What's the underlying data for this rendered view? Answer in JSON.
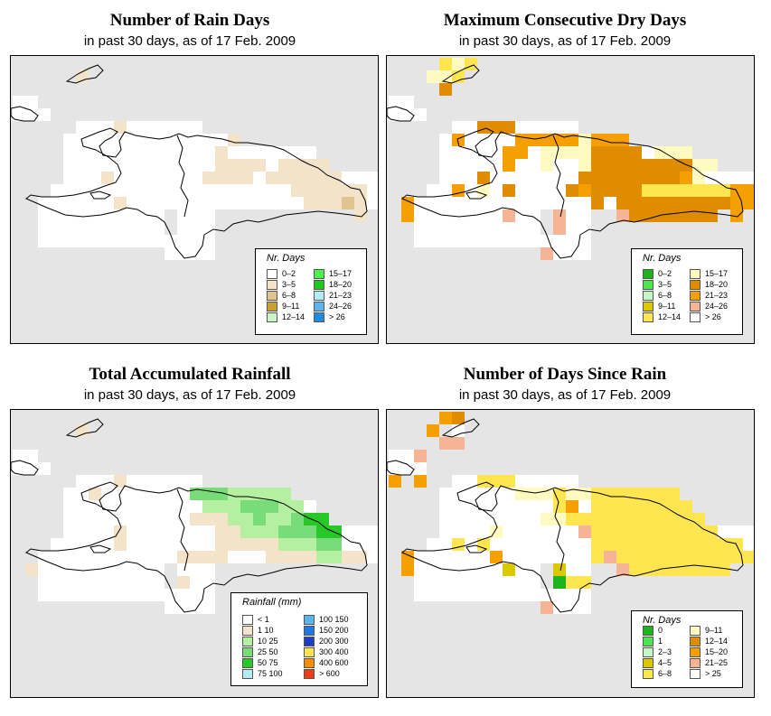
{
  "panels": [
    {
      "title": "Number of Rain Days",
      "subtitle": "in past 30 days, as of  17 Feb. 2009",
      "legend_title": "Nr. Days",
      "legend": [
        {
          "label": "0–2",
          "color": "#ffffff"
        },
        {
          "label": "3–5",
          "color": "#f2e3c9"
        },
        {
          "label": "6–8",
          "color": "#e0c48f"
        },
        {
          "label": "9–11",
          "color": "#c9a033"
        },
        {
          "label": "12–14",
          "color": "#c8f5c8"
        },
        {
          "label": "15–17",
          "color": "#4ef04e"
        },
        {
          "label": "18–20",
          "color": "#1ec81e"
        },
        {
          "label": "21–23",
          "color": "#b4ecf5"
        },
        {
          "label": "24–26",
          "color": "#5ab4f0"
        },
        {
          "label": "> 26",
          "color": "#1e8ce6"
        }
      ]
    },
    {
      "title": "Maximum Consecutive Dry Days",
      "subtitle": "in past 30 days, as of  17 Feb. 2009",
      "legend_title": "Nr. Days",
      "legend": [
        {
          "label": "0–2",
          "color": "#1eb41e"
        },
        {
          "label": "3–5",
          "color": "#4ee64e"
        },
        {
          "label": "6–8",
          "color": "#c8f5c8"
        },
        {
          "label": "9–11",
          "color": "#dcc800"
        },
        {
          "label": "12–14",
          "color": "#ffe650"
        },
        {
          "label": "15–17",
          "color": "#fffac0"
        },
        {
          "label": "18–20",
          "color": "#e08c00"
        },
        {
          "label": "21–23",
          "color": "#f5a000"
        },
        {
          "label": "24–26",
          "color": "#f5b496"
        },
        {
          "label": "> 26",
          "color": "#ffffff"
        }
      ]
    },
    {
      "title": "Total Accumulated Rainfall",
      "subtitle": "in past 30 days, as of  17 Feb. 2009",
      "legend_title": "Rainfall (mm)",
      "legend": [
        {
          "label": "< 1",
          "color": "#ffffff"
        },
        {
          "label": "1    10",
          "color": "#f2e3c9"
        },
        {
          "label": "10    25",
          "color": "#b4f0a0"
        },
        {
          "label": "25    50",
          "color": "#78dc78"
        },
        {
          "label": "50    75",
          "color": "#28c828"
        },
        {
          "label": "75  100",
          "color": "#b4ecf5"
        },
        {
          "label": "100  150",
          "color": "#5ab4f0"
        },
        {
          "label": "150  200",
          "color": "#1e78e6"
        },
        {
          "label": "200  300",
          "color": "#1e3cc8"
        },
        {
          "label": "300  400",
          "color": "#ffe650"
        },
        {
          "label": "400  600",
          "color": "#ff8c00"
        },
        {
          "label": "> 600",
          "color": "#f03c14"
        }
      ]
    },
    {
      "title": "Number of Days Since Rain",
      "subtitle": "in past 30 days, as of  17 Feb. 2009",
      "legend_title": "Nr. Days",
      "legend": [
        {
          "label": "0",
          "color": "#1eb41e"
        },
        {
          "label": "1",
          "color": "#4ee64e"
        },
        {
          "label": "2–3",
          "color": "#c8f5c8"
        },
        {
          "label": "4–5",
          "color": "#dcc800"
        },
        {
          "label": "6–8",
          "color": "#ffe650"
        },
        {
          "label": "9–11",
          "color": "#fffac0"
        },
        {
          "label": "12–14",
          "color": "#e08c00"
        },
        {
          "label": "15–20",
          "color": "#f5a000"
        },
        {
          "label": "21–25",
          "color": "#f5b496"
        },
        {
          "label": "> 25",
          "color": "#ffffff"
        }
      ]
    }
  ]
}
